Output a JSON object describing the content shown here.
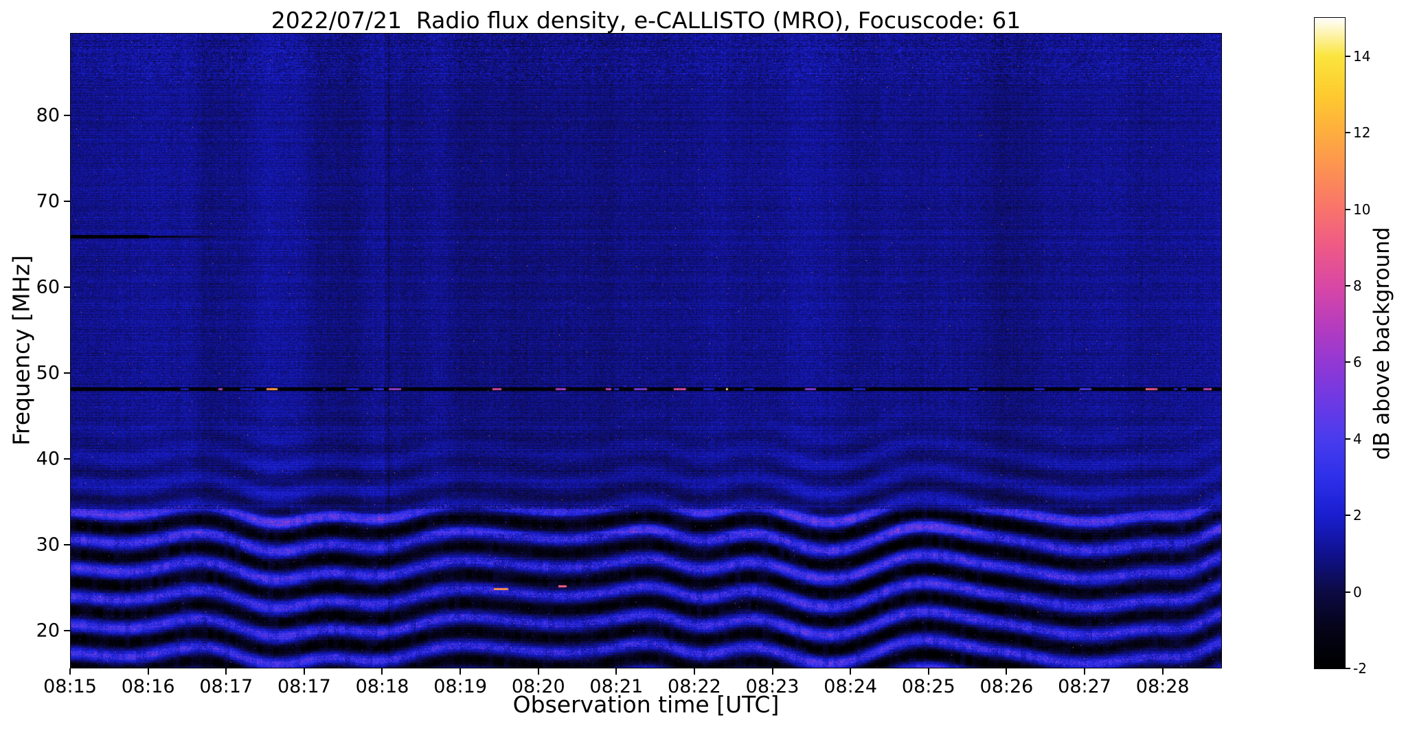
{
  "figure": {
    "date": "2022/07/21",
    "instrument": "e-CALLISTO (MRO)",
    "focuscode": "61"
  },
  "chart_data": {
    "type": "heatmap",
    "title": "2022/07/21  Radio flux density, e-CALLISTO (MRO), Focuscode: 61",
    "xlabel": "Observation time [UTC]",
    "ylabel": "Frequency [MHz]",
    "x_tick_labels": [
      "08:15",
      "08:16",
      "08:17",
      "08:17",
      "08:18",
      "08:19",
      "08:20",
      "08:21",
      "08:22",
      "08:23",
      "08:24",
      "08:25",
      "08:26",
      "08:27",
      "08:28"
    ],
    "y_tick_values": [
      20,
      30,
      40,
      50,
      60,
      70,
      80
    ],
    "y_range_mhz": [
      15.6,
      89.6
    ],
    "x_range_utc": [
      "08:15",
      "08:29"
    ],
    "grid": false,
    "legend": "none",
    "colorbar": {
      "label": "dB above background",
      "tick_values": [
        -2,
        0,
        2,
        4,
        6,
        8,
        10,
        12,
        14
      ],
      "value_range": [
        -2,
        15
      ],
      "colormap_stops": [
        [
          0,
          "#000000"
        ],
        [
          0.059,
          "#050418"
        ],
        [
          0.118,
          "#0d0b45"
        ],
        [
          0.176,
          "#10128f"
        ],
        [
          0.235,
          "#1a1fd0"
        ],
        [
          0.294,
          "#2e31ea"
        ],
        [
          0.353,
          "#4a3cee"
        ],
        [
          0.412,
          "#6f3ae4"
        ],
        [
          0.471,
          "#9438d4"
        ],
        [
          0.529,
          "#b83dbe"
        ],
        [
          0.588,
          "#d948a5"
        ],
        [
          0.647,
          "#ee5a88"
        ],
        [
          0.706,
          "#f9746c"
        ],
        [
          0.765,
          "#fd9154"
        ],
        [
          0.824,
          "#feae3f"
        ],
        [
          0.882,
          "#fecb2f"
        ],
        [
          0.941,
          "#fbe53e"
        ],
        [
          1,
          "#ffffff"
        ]
      ]
    },
    "background_noise_db": 1,
    "features": [
      {
        "name": "rfi-channel",
        "freq_mhz": 48.2,
        "time_extent": "full",
        "description": "Narrow horizontal interference channel, mostly blanked (black) with intermittent bright dashes from blue up to orange/white (3-14 dB)"
      },
      {
        "name": "dark-stripe",
        "freq_mhz": 65.8,
        "time_range_utc": [
          "08:15",
          "08:16"
        ],
        "description": "Black horizontal stripe at left edge, fading tail toward 08:17"
      },
      {
        "name": "ionospheric-ripple-bands",
        "freq_range_mhz": [
          15.6,
          34.5
        ],
        "ripple_period_mhz": 3.3,
        "description": "Quasi-periodic undulating bright/dark bands across the whole observation; crests ~2-6 dB (blue to magenta), troughs near -2 dB"
      },
      {
        "name": "burst-dashes",
        "freq_mhz": 25,
        "time_utc": "08:19-08:20",
        "description": "Two short bright orange dashes near 25 MHz"
      },
      {
        "name": "top-edge-texture",
        "freq_range_mhz": [
          84,
          89.6
        ],
        "description": "Denser striped noise texture near the top edge of the spectrogram"
      },
      {
        "name": "vertical-artifact",
        "time_utc": "08:18",
        "description": "Faint dark vertical line spanning all frequencies"
      }
    ]
  }
}
